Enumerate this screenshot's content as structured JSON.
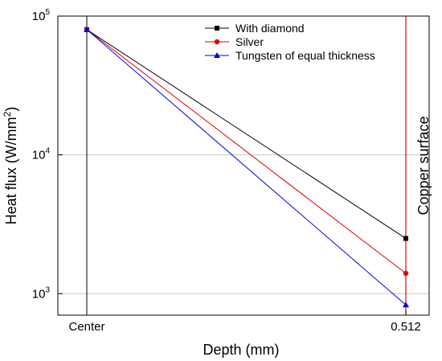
{
  "chart_data": {
    "type": "line",
    "x_tick_labels": [
      "Center",
      "0.512"
    ],
    "xlabel": "Depth (mm)",
    "ylabel_main": "Heat flux (W/mm",
    "ylabel_sup": "2",
    "ylabel_close": ")",
    "y_scale": "log",
    "ylim": [
      700,
      100000
    ],
    "y_ticks": [
      {
        "value": 1000,
        "base": "10",
        "exp": "3"
      },
      {
        "value": 10000,
        "base": "10",
        "exp": "4"
      },
      {
        "value": 100000,
        "base": "10",
        "exp": "5"
      }
    ],
    "grid": "horizontal major lines",
    "legend_position": "top-right",
    "annotation": "Copper surface",
    "series": [
      {
        "name": "With diamond",
        "color": "#000000",
        "marker": "square",
        "x": [
          "Center",
          "0.512"
        ],
        "values": [
          80000,
          2500
        ]
      },
      {
        "name": "Silver",
        "color": "#e00000",
        "marker": "circle",
        "x": [
          "Center",
          "0.512"
        ],
        "values": [
          80000,
          1400
        ]
      },
      {
        "name": "Tungsten of equal thickness",
        "color": "#0000e0",
        "marker": "triangle",
        "x": [
          "Center",
          "0.512"
        ],
        "values": [
          80000,
          830
        ]
      }
    ],
    "vertical_line": {
      "x": "0.512",
      "color": "#ff0000"
    }
  }
}
